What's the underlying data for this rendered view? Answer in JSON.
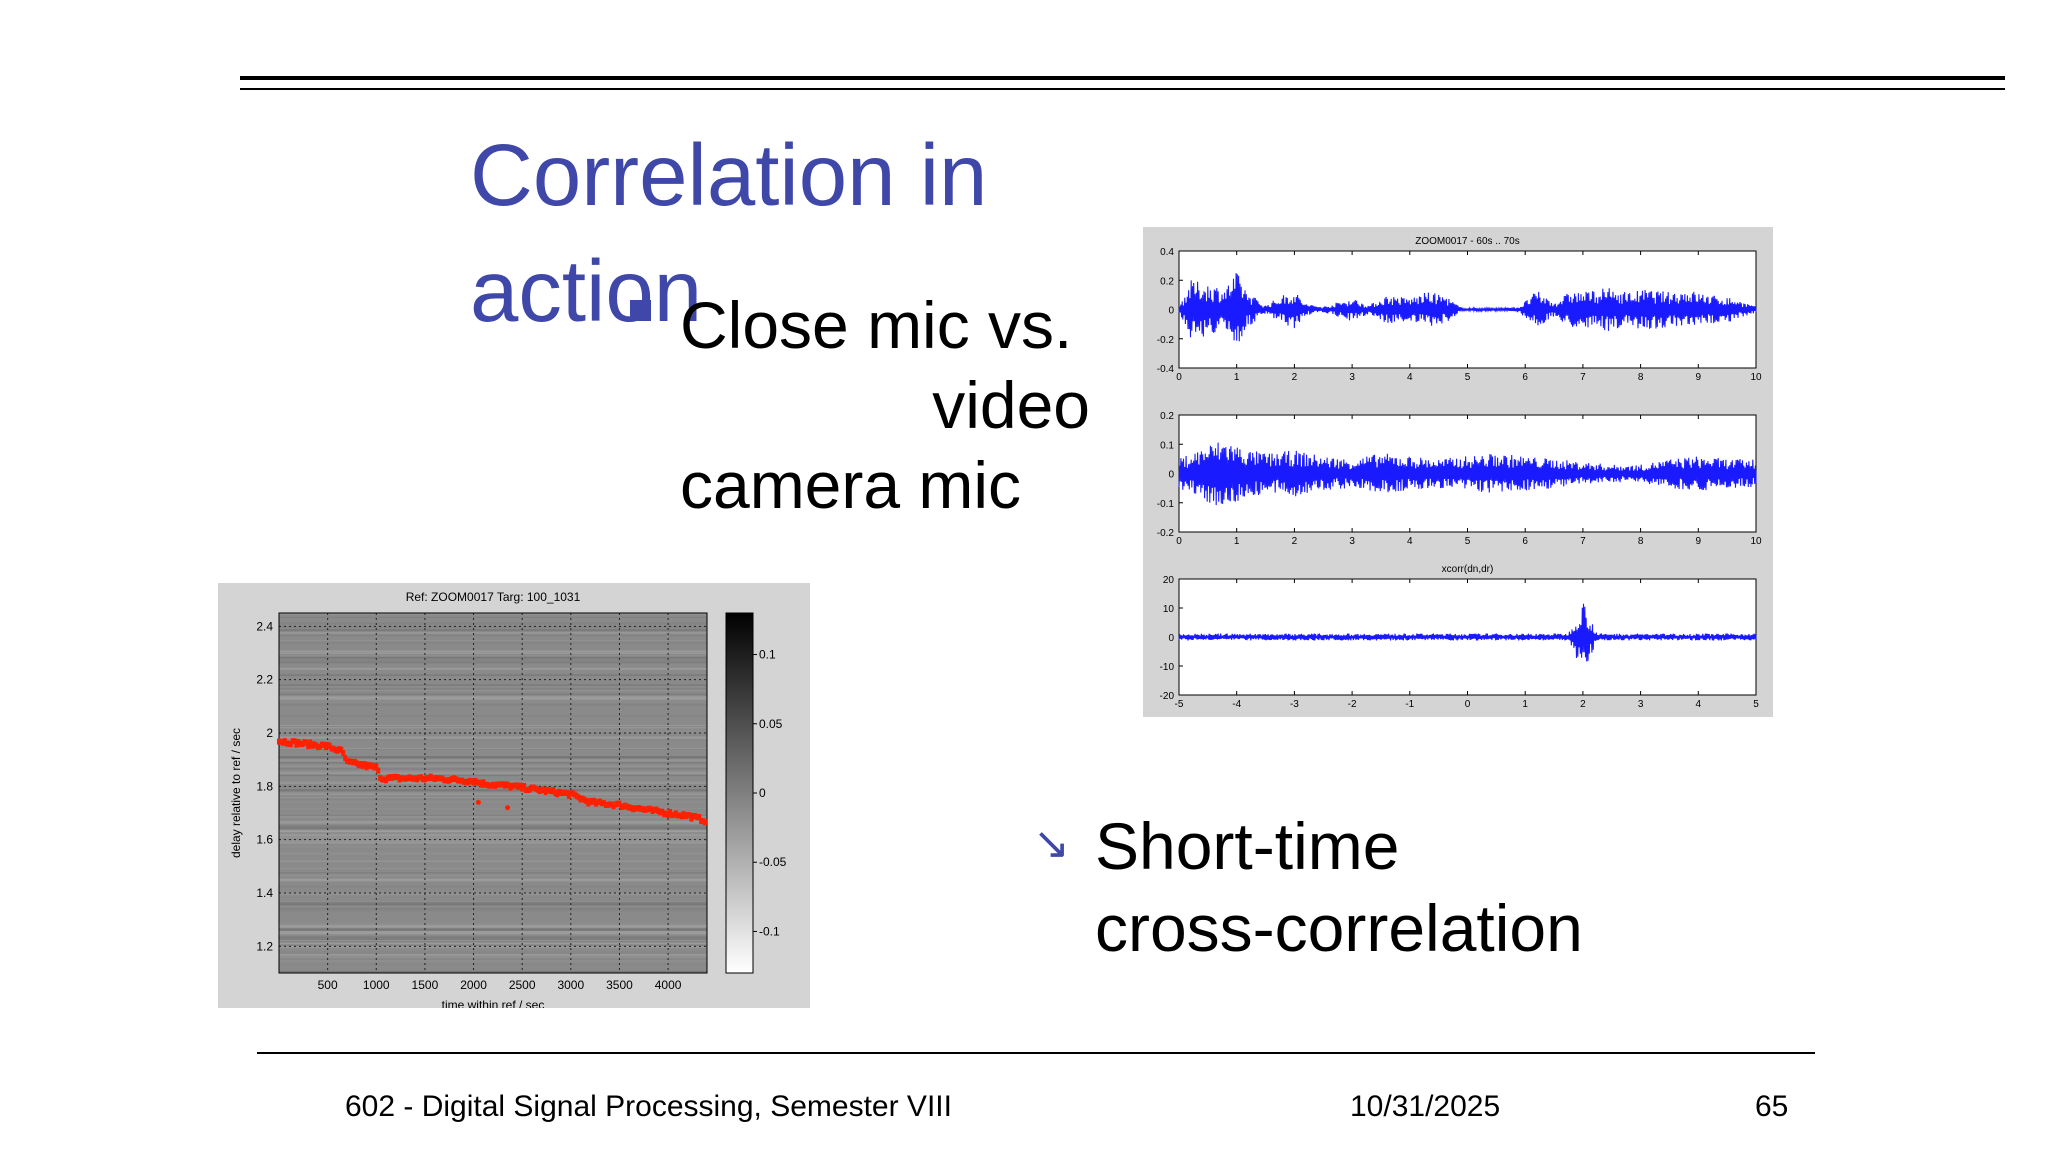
{
  "slide": {
    "title": "Correlation in action",
    "bullet1_line1": "Close mic vs.",
    "bullet1_line2": "video",
    "bullet1_line3": "camera  mic",
    "bullet2_line1": "Short-time",
    "bullet2_line2": "cross-correlation",
    "footer_course": "602 - Digital Signal Processing, Semester VIII",
    "footer_date": "10/31/2025",
    "footer_page": "65"
  },
  "colors": {
    "title": "#3f48a8",
    "signal": "#1a1aff",
    "track": "#ff2000"
  },
  "chart_data": [
    {
      "type": "heatmap",
      "title": "Ref: ZOOM0017 Targ: 100_1031",
      "xlabel": "time within ref / sec",
      "ylabel": "delay relative to ref / sec",
      "xlim": [
        0,
        4400
      ],
      "ylim": [
        1.1,
        2.45
      ],
      "x_ticks": [
        "500",
        "1000",
        "1500",
        "2000",
        "2500",
        "3000",
        "3500",
        "4000"
      ],
      "y_ticks": [
        "1.2",
        "1.4",
        "1.6",
        "1.8",
        "2",
        "2.2",
        "2.4"
      ],
      "colorbar_ticks": [
        "0.1",
        "0.05",
        "0",
        "-0.05",
        "-0.1"
      ],
      "colorbar_range": [
        -0.13,
        0.13
      ],
      "grid": true,
      "track": {
        "x": [
          0,
          250,
          500,
          650,
          700,
          1000,
          1050,
          1500,
          1600,
          2000,
          2100,
          2400,
          2600,
          3000,
          3200,
          3500,
          3800,
          4000,
          4200,
          4400
        ],
        "y": [
          1.97,
          1.96,
          1.95,
          1.93,
          1.89,
          1.87,
          1.83,
          1.83,
          1.83,
          1.82,
          1.81,
          1.8,
          1.79,
          1.77,
          1.74,
          1.73,
          1.71,
          1.7,
          1.69,
          1.67
        ]
      },
      "outliers": {
        "x": [
          2050,
          2350
        ],
        "y": [
          1.74,
          1.72
        ]
      }
    },
    {
      "type": "line",
      "title": "ZOOM0017 - 60s .. 70s",
      "xlim": [
        0,
        10
      ],
      "ylim": [
        -0.4,
        0.4
      ],
      "x_ticks": [
        "0",
        "1",
        "2",
        "3",
        "4",
        "5",
        "6",
        "7",
        "8",
        "9",
        "10"
      ],
      "y_ticks": [
        "0.4",
        "0.2",
        "0",
        "-0.2",
        "-0.4"
      ],
      "series": [
        {
          "values_note_free": true,
          "envelope_t": [
            0,
            0.2,
            0.5,
            0.8,
            1.0,
            1.2,
            1.5,
            1.8,
            2.0,
            2.2,
            2.5,
            3.0,
            3.3,
            3.6,
            4.0,
            4.3,
            4.6,
            4.9,
            5.2,
            5.6,
            5.9,
            6.2,
            6.5,
            6.8,
            7.0,
            7.4,
            7.8,
            8.1,
            8.5,
            8.8,
            9.2,
            9.6,
            10
          ],
          "envelope_amp": [
            0.02,
            0.2,
            0.18,
            0.15,
            0.26,
            0.12,
            0.03,
            0.1,
            0.13,
            0.04,
            0.02,
            0.08,
            0.03,
            0.1,
            0.08,
            0.12,
            0.1,
            0.01,
            0.01,
            0.01,
            0.02,
            0.13,
            0.05,
            0.13,
            0.12,
            0.15,
            0.12,
            0.14,
            0.12,
            0.14,
            0.1,
            0.08,
            0.02
          ]
        }
      ]
    },
    {
      "type": "line",
      "xlim": [
        0,
        10
      ],
      "ylim": [
        -0.2,
        0.2
      ],
      "x_ticks": [
        "0",
        "1",
        "2",
        "3",
        "4",
        "5",
        "6",
        "7",
        "8",
        "9",
        "10"
      ],
      "y_ticks": [
        "0.2",
        "0.1",
        "0",
        "-0.1",
        "-0.2"
      ],
      "series": [
        {
          "envelope_t": [
            0,
            0.5,
            0.8,
            1.2,
            1.6,
            2.0,
            2.5,
            3.0,
            3.5,
            4.0,
            4.5,
            5.0,
            5.5,
            6.0,
            6.5,
            7.0,
            7.5,
            8.0,
            8.5,
            9.0,
            9.5,
            10
          ],
          "envelope_amp": [
            0.05,
            0.1,
            0.12,
            0.08,
            0.07,
            0.08,
            0.06,
            0.05,
            0.07,
            0.06,
            0.05,
            0.06,
            0.07,
            0.06,
            0.05,
            0.04,
            0.03,
            0.03,
            0.05,
            0.06,
            0.05,
            0.05
          ]
        }
      ]
    },
    {
      "type": "line",
      "title": "xcorr(dn,dr)",
      "xlim": [
        -5,
        5
      ],
      "ylim": [
        -20,
        20
      ],
      "x_ticks": [
        "-5",
        "-4",
        "-3",
        "-2",
        "-1",
        "0",
        "1",
        "2",
        "3",
        "4",
        "5"
      ],
      "y_ticks": [
        "20",
        "10",
        "0",
        "-10",
        "-20"
      ],
      "series": [
        {
          "noise_amp": 1.2,
          "peak_x": 2.0,
          "peak_max": 12,
          "peak_min": -11
        }
      ]
    }
  ]
}
